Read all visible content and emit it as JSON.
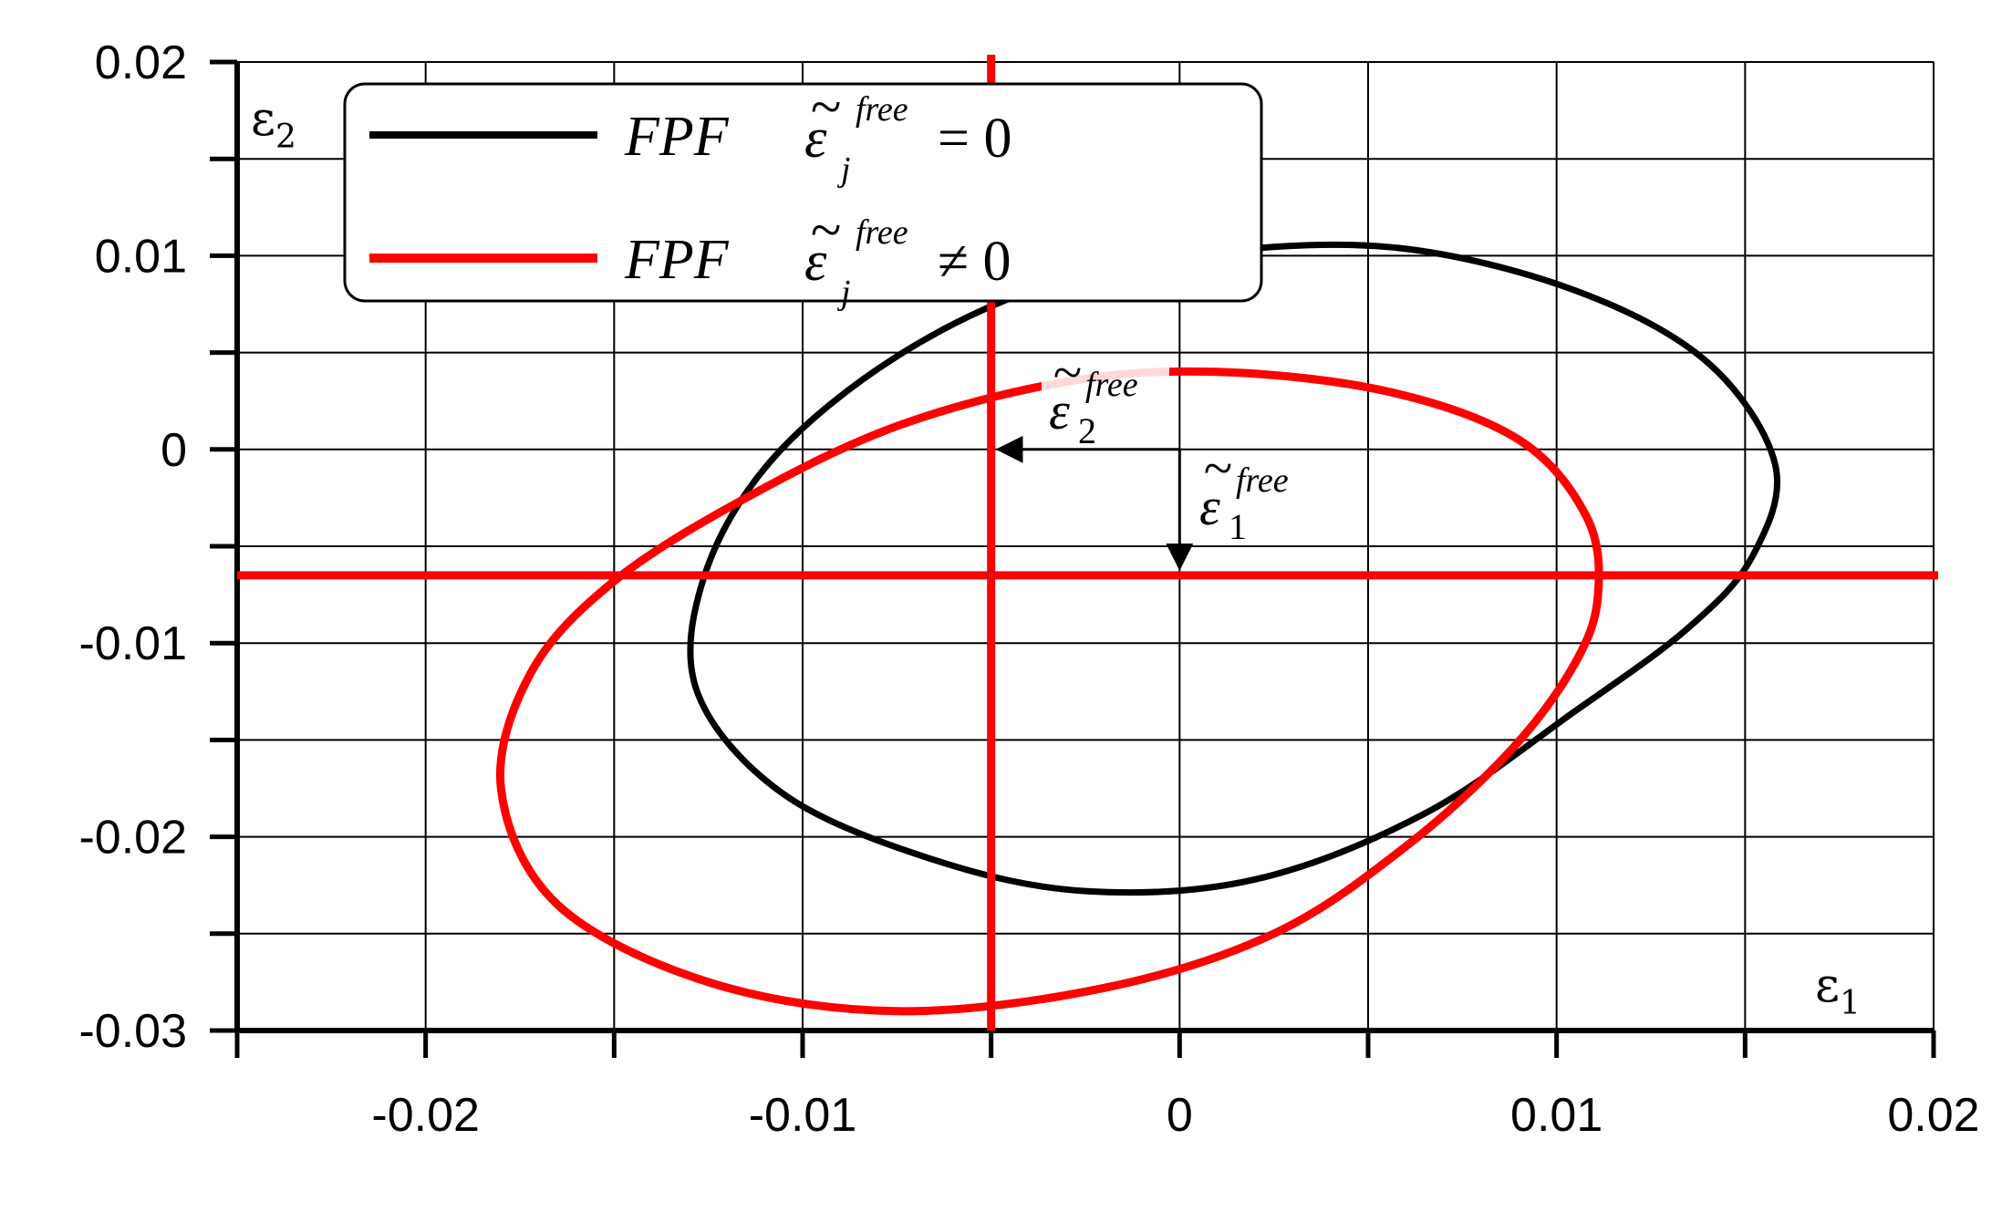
{
  "chart_data": {
    "type": "line",
    "xlabel": "ε1",
    "ylabel": "ε2",
    "xlim": [
      -0.025,
      0.02
    ],
    "ylim": [
      -0.03,
      0.02
    ],
    "x_ticks": [
      -0.02,
      -0.01,
      0,
      0.01,
      0.02
    ],
    "x_tick_labels": [
      "-0.02",
      "-0.01",
      "0",
      "0.01",
      "0.02"
    ],
    "y_ticks": [
      -0.03,
      -0.02,
      -0.01,
      0,
      0.01,
      0.02
    ],
    "y_tick_labels": [
      "-0.03",
      "-0.02",
      "-0.01",
      "0",
      "0.01",
      "0.02"
    ],
    "grid": true,
    "legend_position": "top-left",
    "legend": [
      {
        "label": "FPF",
        "symbol": "ε",
        "sub": "j",
        "sup": "free",
        "relation": "= 0",
        "color": "#000000"
      },
      {
        "label": "FPF",
        "symbol": "ε",
        "sub": "j",
        "sup": "free",
        "relation": "≠ 0",
        "color": "#ff0000"
      }
    ],
    "series": [
      {
        "color": "#000000",
        "points": [
          [
            0.0158,
            -0.0008
          ],
          [
            0.0152,
            -0.0055
          ],
          [
            0.0135,
            -0.0092
          ],
          [
            0.0105,
            -0.0135
          ],
          [
            0.0065,
            -0.0188
          ],
          [
            0.002,
            -0.0222
          ],
          [
            -0.0025,
            -0.0228
          ],
          [
            -0.0065,
            -0.0212
          ],
          [
            -0.0105,
            -0.0178
          ],
          [
            -0.0128,
            -0.0125
          ],
          [
            -0.0126,
            -0.0065
          ],
          [
            -0.0108,
            -0.0005
          ],
          [
            -0.0075,
            0.0048
          ],
          [
            -0.0035,
            0.0085
          ],
          [
            0.001,
            0.0102
          ],
          [
            0.0058,
            0.0104
          ],
          [
            0.0105,
            0.0082
          ],
          [
            0.014,
            0.0045
          ],
          [
            0.0158,
            -0.0008
          ]
        ]
      },
      {
        "color": "#ff0000",
        "points": [
          [
            0.0111,
            -0.0075
          ],
          [
            0.0105,
            -0.011
          ],
          [
            0.0088,
            -0.0155
          ],
          [
            0.006,
            -0.0205
          ],
          [
            0.0025,
            -0.025
          ],
          [
            -0.002,
            -0.0278
          ],
          [
            -0.0075,
            -0.029
          ],
          [
            -0.0125,
            -0.0275
          ],
          [
            -0.0165,
            -0.0235
          ],
          [
            -0.018,
            -0.0175
          ],
          [
            -0.0172,
            -0.0115
          ],
          [
            -0.015,
            -0.0068
          ],
          [
            -0.0115,
            -0.0025
          ],
          [
            -0.0075,
            0.0012
          ],
          [
            -0.003,
            0.0035
          ],
          [
            0.001,
            0.004
          ],
          [
            0.0055,
            0.003
          ],
          [
            0.009,
            0.0005
          ],
          [
            0.0108,
            -0.0035
          ],
          [
            0.0111,
            -0.0075
          ]
        ]
      }
    ],
    "reference_lines": {
      "vertical_x": -0.005,
      "horizontal_y": -0.0065,
      "color": "#ff0000"
    },
    "annotations": [
      {
        "symbol": "ε",
        "sub": "2",
        "sup": "free",
        "arrow_from": [
          0,
          0
        ],
        "arrow_to": [
          -0.005,
          0
        ]
      },
      {
        "symbol": "ε",
        "sub": "1",
        "sup": "free",
        "arrow_from": [
          0,
          0
        ],
        "arrow_to": [
          0,
          -0.0065
        ]
      }
    ]
  }
}
